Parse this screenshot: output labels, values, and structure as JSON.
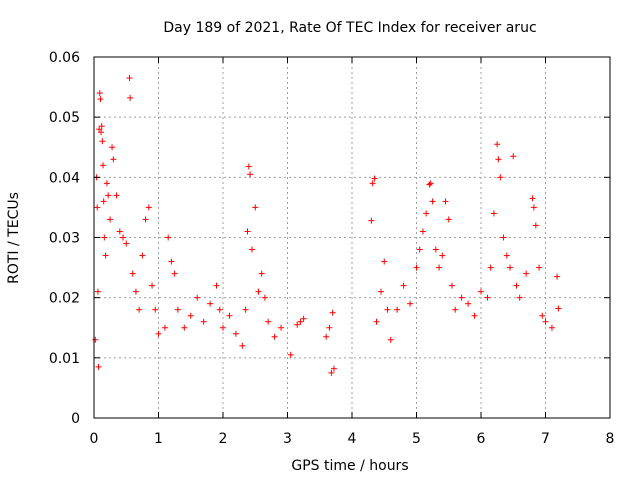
{
  "chart_data": {
    "type": "scatter",
    "title": "Day 189 of 2021, Rate Of TEC Index for receiver aruc",
    "xlabel": "GPS time / hours",
    "ylabel": "ROTI / TECUs",
    "xlim": [
      0,
      8
    ],
    "ylim": [
      0,
      0.06
    ],
    "x_ticks": [
      0,
      1,
      2,
      3,
      4,
      5,
      6,
      7,
      8
    ],
    "x_tick_labels": [
      "0",
      "1",
      "2",
      "3",
      "4",
      "5",
      "6",
      "7",
      "8"
    ],
    "y_ticks": [
      0,
      0.01,
      0.02,
      0.03,
      0.04,
      0.05,
      0.06
    ],
    "y_tick_labels": [
      "0",
      "0.01",
      "0.02",
      "0.03",
      "0.04",
      "0.05",
      "0.06"
    ],
    "grid": true,
    "marker": "+",
    "color": "#ff0000",
    "series": [
      {
        "name": "ROTI",
        "points": [
          [
            0.02,
            0.013
          ],
          [
            0.04,
            0.04
          ],
          [
            0.05,
            0.035
          ],
          [
            0.06,
            0.021
          ],
          [
            0.07,
            0.0085
          ],
          [
            0.08,
            0.048
          ],
          [
            0.09,
            0.054
          ],
          [
            0.1,
            0.053
          ],
          [
            0.11,
            0.0475
          ],
          [
            0.12,
            0.0485
          ],
          [
            0.13,
            0.046
          ],
          [
            0.14,
            0.042
          ],
          [
            0.15,
            0.036
          ],
          [
            0.16,
            0.03
          ],
          [
            0.18,
            0.027
          ],
          [
            0.2,
            0.039
          ],
          [
            0.22,
            0.037
          ],
          [
            0.25,
            0.033
          ],
          [
            0.28,
            0.045
          ],
          [
            0.3,
            0.043
          ],
          [
            0.35,
            0.037
          ],
          [
            0.4,
            0.031
          ],
          [
            0.45,
            0.03
          ],
          [
            0.5,
            0.029
          ],
          [
            0.55,
            0.0565
          ],
          [
            0.56,
            0.0532
          ],
          [
            0.6,
            0.024
          ],
          [
            0.65,
            0.021
          ],
          [
            0.7,
            0.018
          ],
          [
            0.75,
            0.027
          ],
          [
            0.8,
            0.033
          ],
          [
            0.85,
            0.035
          ],
          [
            0.9,
            0.022
          ],
          [
            0.95,
            0.018
          ],
          [
            1.0,
            0.014
          ],
          [
            1.1,
            0.015
          ],
          [
            1.15,
            0.03
          ],
          [
            1.2,
            0.026
          ],
          [
            1.25,
            0.024
          ],
          [
            1.3,
            0.018
          ],
          [
            1.4,
            0.015
          ],
          [
            1.5,
            0.017
          ],
          [
            1.6,
            0.02
          ],
          [
            1.7,
            0.016
          ],
          [
            1.8,
            0.019
          ],
          [
            1.9,
            0.022
          ],
          [
            1.95,
            0.018
          ],
          [
            2.0,
            0.015
          ],
          [
            2.1,
            0.017
          ],
          [
            2.2,
            0.014
          ],
          [
            2.3,
            0.012
          ],
          [
            2.35,
            0.018
          ],
          [
            2.38,
            0.031
          ],
          [
            2.4,
            0.0418
          ],
          [
            2.42,
            0.0405
          ],
          [
            2.45,
            0.028
          ],
          [
            2.5,
            0.035
          ],
          [
            2.55,
            0.021
          ],
          [
            2.6,
            0.024
          ],
          [
            2.65,
            0.02
          ],
          [
            2.7,
            0.016
          ],
          [
            2.8,
            0.0135
          ],
          [
            2.9,
            0.015
          ],
          [
            3.05,
            0.0105
          ],
          [
            3.15,
            0.0155
          ],
          [
            3.2,
            0.016
          ],
          [
            3.25,
            0.0165
          ],
          [
            3.6,
            0.0135
          ],
          [
            3.65,
            0.015
          ],
          [
            3.7,
            0.0175
          ],
          [
            3.72,
            0.0082
          ],
          [
            3.68,
            0.0075
          ],
          [
            4.3,
            0.0328
          ],
          [
            4.32,
            0.039
          ],
          [
            4.35,
            0.0398
          ],
          [
            4.38,
            0.016
          ],
          [
            4.45,
            0.021
          ],
          [
            4.5,
            0.026
          ],
          [
            4.55,
            0.018
          ],
          [
            4.6,
            0.013
          ],
          [
            4.7,
            0.018
          ],
          [
            4.8,
            0.022
          ],
          [
            4.9,
            0.019
          ],
          [
            5.0,
            0.025
          ],
          [
            5.05,
            0.028
          ],
          [
            5.1,
            0.031
          ],
          [
            5.15,
            0.034
          ],
          [
            5.2,
            0.0388
          ],
          [
            5.22,
            0.039
          ],
          [
            5.25,
            0.036
          ],
          [
            5.3,
            0.028
          ],
          [
            5.35,
            0.025
          ],
          [
            5.4,
            0.027
          ],
          [
            5.45,
            0.036
          ],
          [
            5.5,
            0.033
          ],
          [
            5.55,
            0.022
          ],
          [
            5.6,
            0.018
          ],
          [
            5.7,
            0.02
          ],
          [
            5.8,
            0.019
          ],
          [
            5.9,
            0.017
          ],
          [
            6.0,
            0.021
          ],
          [
            6.1,
            0.02
          ],
          [
            6.15,
            0.025
          ],
          [
            6.2,
            0.034
          ],
          [
            6.25,
            0.0455
          ],
          [
            6.27,
            0.043
          ],
          [
            6.3,
            0.04
          ],
          [
            6.35,
            0.03
          ],
          [
            6.4,
            0.027
          ],
          [
            6.45,
            0.025
          ],
          [
            6.5,
            0.0435
          ],
          [
            6.55,
            0.022
          ],
          [
            6.6,
            0.02
          ],
          [
            6.7,
            0.024
          ],
          [
            6.8,
            0.0365
          ],
          [
            6.82,
            0.035
          ],
          [
            6.85,
            0.032
          ],
          [
            6.9,
            0.025
          ],
          [
            6.95,
            0.017
          ],
          [
            7.0,
            0.016
          ],
          [
            7.1,
            0.015
          ],
          [
            7.18,
            0.0235
          ],
          [
            7.2,
            0.0182
          ]
        ]
      }
    ]
  }
}
